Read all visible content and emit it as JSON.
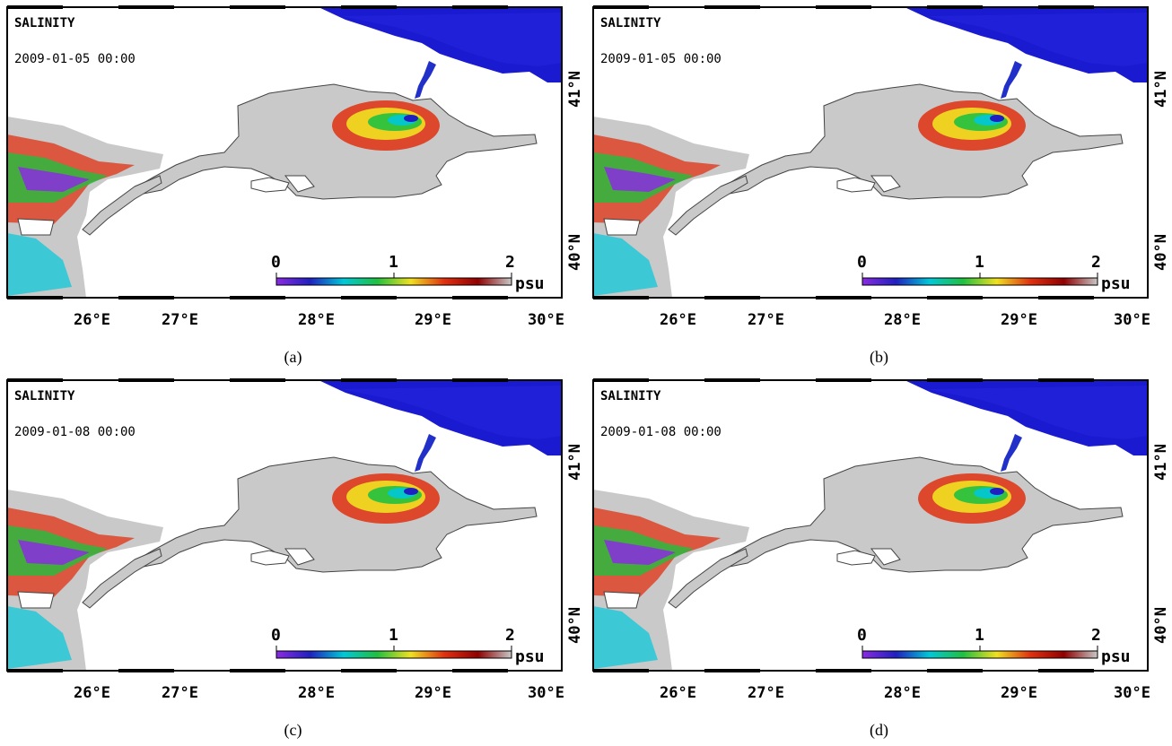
{
  "panels": [
    {
      "title": "SALINITY",
      "date": "2009-01-05 00:00",
      "caption": "(a)"
    },
    {
      "title": "SALINITY",
      "date": "2009-01-05 00:00",
      "caption": "(b)"
    },
    {
      "title": "SALINITY",
      "date": "2009-01-08 00:00",
      "caption": "(c)"
    },
    {
      "title": "SALINITY",
      "date": "2009-01-08 00:00",
      "caption": "(d)"
    }
  ],
  "axes": {
    "lon_ticks": [
      "26°E",
      "27°E",
      "28°E",
      "29°E",
      "30°E"
    ],
    "lat_ticks": [
      "41°N",
      "40°N"
    ]
  },
  "colorbar": {
    "ticks": [
      "0",
      "1",
      "2"
    ],
    "unit": "psu",
    "colors": [
      "#8a2be2",
      "#2020c0",
      "#00c8d8",
      "#20c040",
      "#f0e020",
      "#e03010",
      "#900000",
      "#c8c8c8"
    ]
  },
  "colors": {
    "land": "#ffffff",
    "sea_gray": "#c9c9c9",
    "black_sea": "#1a1ad0"
  }
}
